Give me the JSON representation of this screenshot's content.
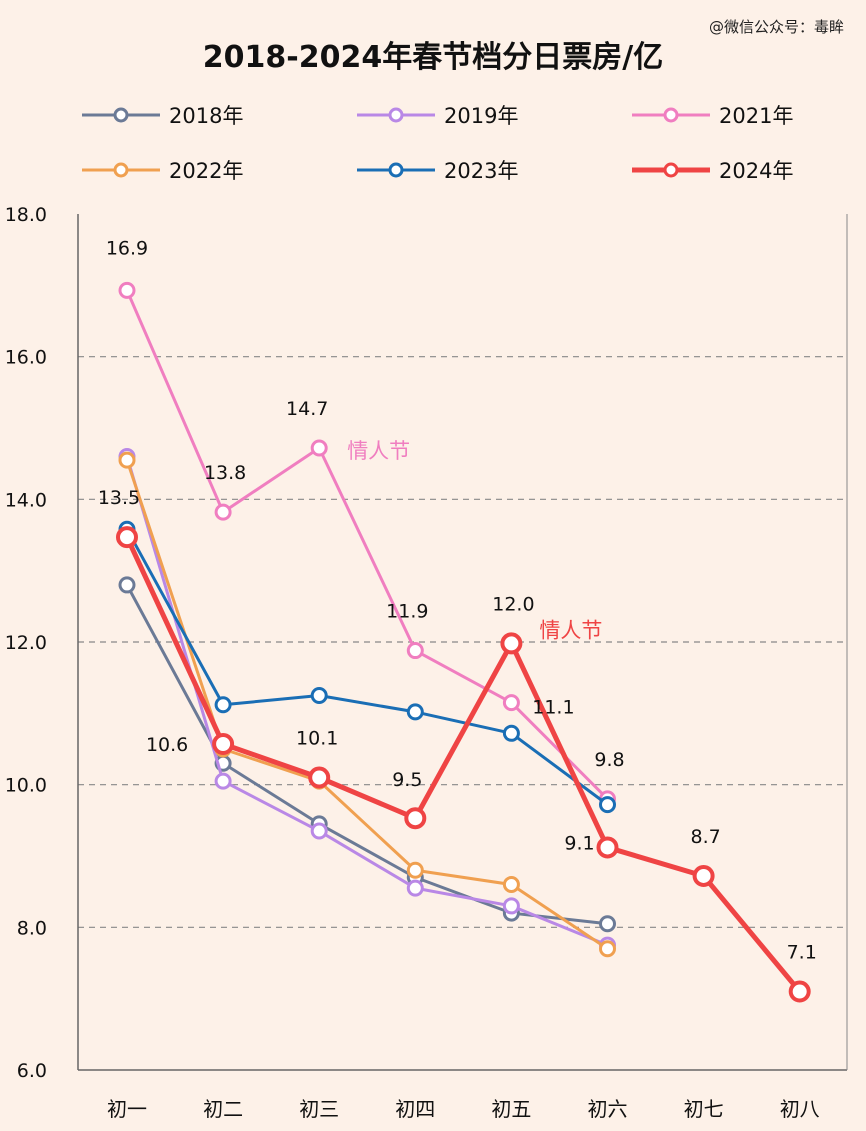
{
  "watermark": "@微信公众号：毒眸",
  "chart_data": {
    "type": "line",
    "title": "2018-2024年春节档分日票房/亿",
    "categories": [
      "初一",
      "初二",
      "初三",
      "初四",
      "初五",
      "初六",
      "初七",
      "初八"
    ],
    "ylim": [
      6.0,
      18.0
    ],
    "yticks": [
      "6.0",
      "8.0",
      "10.0",
      "12.0",
      "14.0",
      "16.0",
      "18.0"
    ],
    "grid": "horizontal dashed",
    "legend_position": "top",
    "series": [
      {
        "name": "2018年",
        "color": "#6b7a96",
        "values": [
          12.8,
          10.3,
          9.45,
          8.7,
          8.2,
          8.05,
          null,
          null
        ]
      },
      {
        "name": "2019年",
        "color": "#b988e6",
        "values": [
          14.6,
          10.05,
          9.35,
          8.55,
          8.3,
          7.75,
          null,
          null
        ]
      },
      {
        "name": "2021年",
        "color": "#f07ec0",
        "values": [
          16.93,
          13.82,
          14.72,
          11.88,
          11.15,
          9.8,
          null,
          null
        ]
      },
      {
        "name": "2022年",
        "color": "#f0a050",
        "values": [
          14.55,
          10.5,
          10.05,
          8.8,
          8.6,
          7.7,
          null,
          null
        ]
      },
      {
        "name": "2023年",
        "color": "#1a6eb5",
        "values": [
          13.58,
          11.12,
          11.25,
          11.02,
          10.72,
          9.72,
          null,
          null
        ]
      },
      {
        "name": "2024年",
        "color": "#ef4444",
        "values": [
          13.47,
          10.57,
          10.1,
          9.53,
          11.98,
          9.12,
          8.72,
          7.1
        ]
      }
    ],
    "data_labels": [
      {
        "text": "16.9",
        "category": "初一",
        "series": "2021年"
      },
      {
        "text": "13.8",
        "category": "初二",
        "series": "2021年"
      },
      {
        "text": "14.7",
        "category": "初三",
        "series": "2021年"
      },
      {
        "text": "11.9",
        "category": "初四",
        "series": "2021年"
      },
      {
        "text": "11.1",
        "category": "初五",
        "series": "2021年"
      },
      {
        "text": "9.8",
        "category": "初六",
        "series": "2021年"
      },
      {
        "text": "13.5",
        "category": "初一",
        "series": "2024年"
      },
      {
        "text": "10.6",
        "category": "初二",
        "series": "2024年"
      },
      {
        "text": "10.1",
        "category": "初三",
        "series": "2024年"
      },
      {
        "text": "9.5",
        "category": "初四",
        "series": "2024年"
      },
      {
        "text": "12.0",
        "category": "初五",
        "series": "2024年"
      },
      {
        "text": "9.1",
        "category": "初六",
        "series": "2024年"
      },
      {
        "text": "8.7",
        "category": "初七",
        "series": "2024年"
      },
      {
        "text": "7.1",
        "category": "初八",
        "series": "2024年"
      }
    ],
    "annotations": [
      {
        "text": "情人节",
        "series": "2021年",
        "category": "初三",
        "color": "#f07ec0"
      },
      {
        "text": "情人节",
        "series": "2024年",
        "category": "初五",
        "color": "#ef4444"
      }
    ]
  }
}
